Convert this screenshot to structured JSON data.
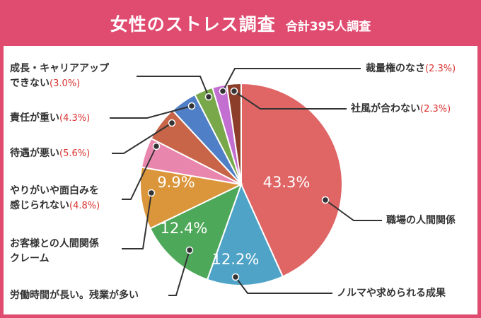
{
  "header": {
    "title": "女性のストレス調査",
    "subtitle": "合計395人調査"
  },
  "chart_data": {
    "type": "pie",
    "title": "女性のストレス調査",
    "subtitle": "合計395人調査",
    "unit": "%",
    "slices": [
      {
        "label": "職場の人間関係",
        "value": 43.3,
        "display": "43.3%",
        "color": "#e06666"
      },
      {
        "label": "ノルマや求められる成果",
        "value": 12.2,
        "display": "12.2%",
        "color": "#4fa3c7"
      },
      {
        "label": "労働時間が長い。残業が多い",
        "value": 12.4,
        "display": "12.4%",
        "color": "#4ea85a"
      },
      {
        "label": "お客様との人間関係\nクレーム",
        "value": 9.9,
        "display": "9.9%",
        "color": "#db963b"
      },
      {
        "label": "やりがいや面白みを\n感じられない",
        "value": 4.8,
        "display": "(4.8%)",
        "color": "#e986ad"
      },
      {
        "label": "待遇が悪い",
        "value": 5.6,
        "display": "(5.6%)",
        "color": "#c86447"
      },
      {
        "label": "責任が重い",
        "value": 4.3,
        "display": "(4.3%)",
        "color": "#4f7fc6"
      },
      {
        "label": "成長・キャリアアップ\nできない",
        "value": 3.0,
        "display": "(3.0%)",
        "color": "#79a84b"
      },
      {
        "label": "裁量権のなさ",
        "value": 2.3,
        "display": "(2.3%)",
        "color": "#c36fd1"
      },
      {
        "label": "社風が合わない",
        "value": 2.3,
        "display": "(2.3%)",
        "color": "#8c3e2b"
      }
    ]
  }
}
